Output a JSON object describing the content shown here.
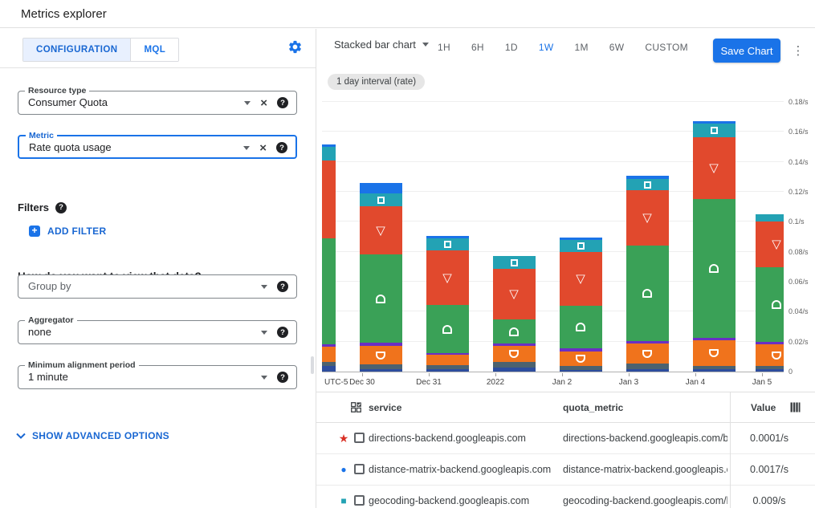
{
  "header": {
    "title": "Metrics explorer"
  },
  "left_panel": {
    "tabs": [
      {
        "label": "CONFIGURATION",
        "active": true
      },
      {
        "label": "MQL",
        "active": false
      }
    ],
    "resource_type": {
      "label": "Resource type",
      "value": "Consumer Quota"
    },
    "metric": {
      "label": "Metric",
      "value": "Rate quota usage"
    },
    "filters_label": "Filters",
    "add_filter_label": "ADD FILTER",
    "view_heading": "How do you want to view that data?",
    "group_by": {
      "placeholder": "Group by"
    },
    "aggregator": {
      "label": "Aggregator",
      "value": "none"
    },
    "min_alignment": {
      "label": "Minimum alignment period",
      "value": "1 minute"
    },
    "advanced_label": "SHOW ADVANCED OPTIONS"
  },
  "toolbar": {
    "chart_type": "Stacked bar chart",
    "time_ranges": [
      "1H",
      "6H",
      "1D",
      "1W",
      "1M",
      "6W",
      "CUSTOM"
    ],
    "active_range": "1W",
    "save_label": "Save Chart",
    "interval_badge": "1 day interval (rate)"
  },
  "chart_data": {
    "type": "bar",
    "stacked": true,
    "unit": "/s",
    "ylim": [
      0,
      0.18
    ],
    "ytick_step": 0.02,
    "ytick_labels": [
      "0.18/s",
      "0.16/s",
      "0.14/s",
      "0.12/s",
      "0.1/s",
      "0.08/s",
      "0.06/s",
      "0.04/s",
      "0.02/s",
      "0"
    ],
    "x_axis_labels": [
      "UTC-5",
      "Dec 30",
      "Dec 31",
      "2022",
      "Jan 2",
      "Jan 3",
      "Jan 4",
      "Jan 5"
    ],
    "grid": true,
    "legend_position": "table-below",
    "series": [
      {
        "name": "series-navy",
        "color": "#2d4d9e",
        "marker": "none",
        "values": [
          0.0037,
          0.0016,
          0.0016,
          0.0027,
          0.0012,
          0.0014,
          0.0014,
          0.0014
        ]
      },
      {
        "name": "series-slate",
        "color": "#4c626f",
        "marker": "none",
        "values": [
          0.0027,
          0.0032,
          0.0027,
          0.0036,
          0.0027,
          0.0039,
          0.0021,
          0.002
        ]
      },
      {
        "name": "series-orange",
        "color": "#f0731c",
        "marker": "shield",
        "values": [
          0.0102,
          0.0123,
          0.0068,
          0.0107,
          0.0095,
          0.0134,
          0.0169,
          0.0143
        ]
      },
      {
        "name": "series-purple",
        "color": "#6a2fc4",
        "marker": "none",
        "values": [
          0.0016,
          0.0021,
          0.0012,
          0.0018,
          0.0021,
          0.0018,
          0.0018,
          0.0018
        ]
      },
      {
        "name": "series-green",
        "color": "#3aa157",
        "marker": "arch",
        "values": [
          0.0707,
          0.0589,
          0.0321,
          0.0161,
          0.0286,
          0.0637,
          0.0928,
          0.05
        ]
      },
      {
        "name": "series-red",
        "color": "#e1492d",
        "marker": "triangle-down",
        "values": [
          0.052,
          0.0321,
          0.0366,
          0.034,
          0.0357,
          0.0368,
          0.0411,
          0.0304
        ]
      },
      {
        "name": "series-teal",
        "color": "#23a2b4",
        "marker": "square",
        "values": [
          0.0091,
          0.0086,
          0.008,
          0.0084,
          0.008,
          0.0075,
          0.0089,
          0.005
        ]
      },
      {
        "name": "series-blue",
        "color": "#1a73e8",
        "marker": "none",
        "values": [
          0.0016,
          0.007,
          0.0016,
          0.0,
          0.0018,
          0.0021,
          0.0018,
          0.0
        ]
      }
    ]
  },
  "table": {
    "columns": {
      "service": "service",
      "quota_metric": "quota_metric",
      "value": "Value"
    },
    "rows": [
      {
        "marker": "star",
        "marker_color": "#d93025",
        "service": "directions-backend.googleapis.com",
        "quota_metric": "directions-backend.googleapis.com/billabl",
        "value": "0.0001/s"
      },
      {
        "marker": "circle",
        "marker_color": "#1a73e8",
        "service": "distance-matrix-backend.googleapis.com",
        "quota_metric": "distance-matrix-backend.googleapis.com/b",
        "value": "0.0017/s"
      },
      {
        "marker": "square",
        "marker_color": "#23a2b4",
        "service": "geocoding-backend.googleapis.com",
        "quota_metric": "geocoding-backend.googleapis.com/billab",
        "value": "0.009/s"
      }
    ]
  },
  "colors": {
    "accent_blue": "#1a73e8",
    "tab_active_bg": "#e8f0fe",
    "badge_bg": "#e6e6e6"
  }
}
